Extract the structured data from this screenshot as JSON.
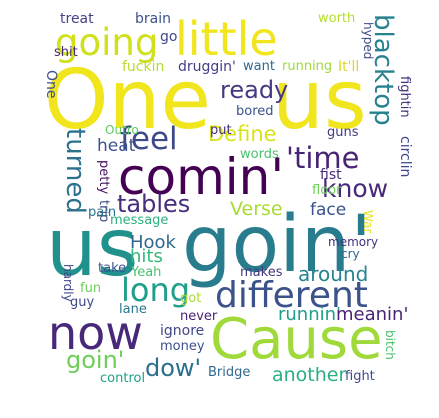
{
  "words": [
    {
      "text": "One",
      "color": "#f1e51d",
      "vertical": false
    },
    {
      "text": "us",
      "color": "#f1e51d",
      "vertical": false
    },
    {
      "text": "little",
      "color": "#f1e51d",
      "vertical": false
    },
    {
      "text": "going",
      "color": "#d0e11c",
      "vertical": false
    },
    {
      "text": "treat",
      "color": "#414487",
      "vertical": false
    },
    {
      "text": "brain",
      "color": "#3b528b",
      "vertical": false
    },
    {
      "text": "go",
      "color": "#3e4989",
      "vertical": false
    },
    {
      "text": "worth",
      "color": "#b5de2b",
      "vertical": false
    },
    {
      "text": "shit",
      "color": "#482878",
      "vertical": false
    },
    {
      "text": "fuckin",
      "color": "#b5de2b",
      "vertical": false
    },
    {
      "text": "druggin'",
      "color": "#433e85",
      "vertical": false
    },
    {
      "text": "want",
      "color": "#31688e",
      "vertical": false
    },
    {
      "text": "running",
      "color": "#9fda3a",
      "vertical": false
    },
    {
      "text": "It'll",
      "color": "#ddd62c",
      "vertical": false
    },
    {
      "text": "hyped",
      "color": "#3e4a89",
      "vertical": true
    },
    {
      "text": "blacktop",
      "color": "#26828e",
      "vertical": true
    },
    {
      "text": "fightin",
      "color": "#46337e",
      "vertical": true
    },
    {
      "text": "circlin",
      "color": "#3e4989",
      "vertical": true
    },
    {
      "text": "One",
      "color": "#3b528b",
      "vertical": true
    },
    {
      "text": "ready",
      "color": "#443983",
      "vertical": false
    },
    {
      "text": "bored",
      "color": "#3b528b",
      "vertical": false
    },
    {
      "text": "feel",
      "color": "#3e4989",
      "vertical": false
    },
    {
      "text": "Define",
      "color": "#d8e219",
      "vertical": false
    },
    {
      "text": "'time",
      "color": "#482475",
      "vertical": false
    },
    {
      "text": "know",
      "color": "#482878",
      "vertical": false
    },
    {
      "text": "comin'",
      "color": "#440154",
      "vertical": false
    },
    {
      "text": "turned",
      "color": "#2c728e",
      "vertical": true
    },
    {
      "text": "heat",
      "color": "#3b528b",
      "vertical": false
    },
    {
      "text": "Outro",
      "color": "#5ec962",
      "vertical": false
    },
    {
      "text": "put",
      "color": "#472c7a",
      "vertical": false
    },
    {
      "text": "guns",
      "color": "#453781",
      "vertical": false
    },
    {
      "text": "words",
      "color": "#4ac16d",
      "vertical": false
    },
    {
      "text": "petty",
      "color": "#471063",
      "vertical": true
    },
    {
      "text": "trip",
      "color": "#3e4989",
      "vertical": true
    },
    {
      "text": "fist",
      "color": "#472d7b",
      "vertical": false
    },
    {
      "text": "floor",
      "color": "#6ece58",
      "vertical": false
    },
    {
      "text": "tables",
      "color": "#472d7b",
      "vertical": false
    },
    {
      "text": "Verse",
      "color": "#a8db34",
      "vertical": false
    },
    {
      "text": "face",
      "color": "#3b528b",
      "vertical": false
    },
    {
      "text": "pain",
      "color": "#2c728e",
      "vertical": false
    },
    {
      "text": "message",
      "color": "#2ab07f",
      "vertical": false
    },
    {
      "text": "us",
      "color": "#21918c",
      "vertical": false
    },
    {
      "text": "goin'",
      "color": "#287c8e",
      "vertical": false
    },
    {
      "text": "War",
      "color": "#e5e419",
      "vertical": true
    },
    {
      "text": "Hook",
      "color": "#31688e",
      "vertical": false
    },
    {
      "text": "hits",
      "color": "#35b779",
      "vertical": false
    },
    {
      "text": "memory",
      "color": "#46327e",
      "vertical": false
    },
    {
      "text": "cry",
      "color": "#31688e",
      "vertical": false
    },
    {
      "text": "take",
      "color": "#3b528b",
      "vertical": false
    },
    {
      "text": "Yeah",
      "color": "#4ac16d",
      "vertical": false
    },
    {
      "text": "makes",
      "color": "#453781",
      "vertical": false
    },
    {
      "text": "around",
      "color": "#25848e",
      "vertical": false
    },
    {
      "text": "long",
      "color": "#1f9e89",
      "vertical": false
    },
    {
      "text": "different",
      "color": "#3b528b",
      "vertical": false
    },
    {
      "text": "hardly",
      "color": "#414487",
      "vertical": true
    },
    {
      "text": "fun",
      "color": "#6ece58",
      "vertical": false
    },
    {
      "text": "guy",
      "color": "#3e4989",
      "vertical": false
    },
    {
      "text": "lane",
      "color": "#2a788e",
      "vertical": false
    },
    {
      "text": "got",
      "color": "#a8db34",
      "vertical": false
    },
    {
      "text": "never",
      "color": "#482475",
      "vertical": false
    },
    {
      "text": "ignore",
      "color": "#404688",
      "vertical": false
    },
    {
      "text": "runnin'",
      "color": "#1f9e89",
      "vertical": false
    },
    {
      "text": "meanin'",
      "color": "#482475",
      "vertical": false
    },
    {
      "text": "now",
      "color": "#482878",
      "vertical": false
    },
    {
      "text": "Cause",
      "color": "#9fda3a",
      "vertical": false
    },
    {
      "text": "bitch",
      "color": "#4ac16d",
      "vertical": true
    },
    {
      "text": "money",
      "color": "#3b528b",
      "vertical": false
    },
    {
      "text": "goin'",
      "color": "#6ece58",
      "vertical": false
    },
    {
      "text": "dow'",
      "color": "#2d708e",
      "vertical": false
    },
    {
      "text": "another",
      "color": "#2ab07f",
      "vertical": false
    },
    {
      "text": "Bridge",
      "color": "#31688e",
      "vertical": false
    },
    {
      "text": "fight",
      "color": "#3e4989",
      "vertical": false
    },
    {
      "text": "control",
      "color": "#1fa187",
      "vertical": false
    }
  ]
}
